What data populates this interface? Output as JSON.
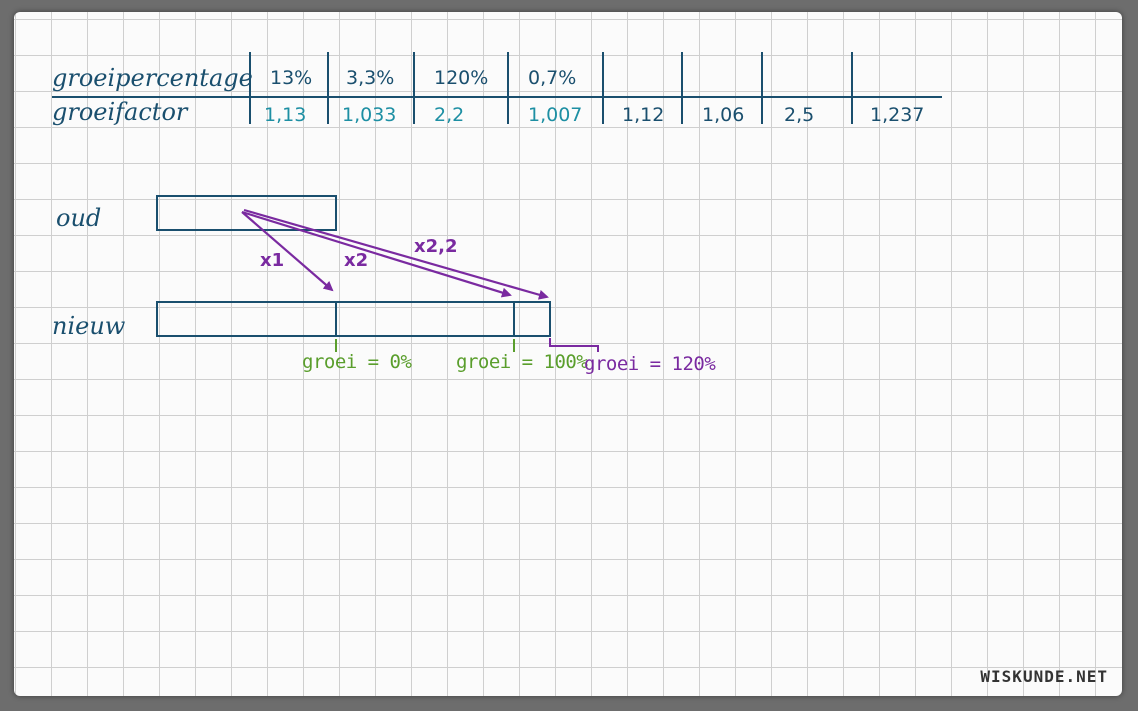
{
  "table": {
    "row1_label": "groeipercentage",
    "row2_label": "groeifactor",
    "percentages": [
      "13%",
      "3,3%",
      "120%",
      "0,7%",
      "",
      "",
      "",
      ""
    ],
    "factors": [
      "1,13",
      "1,033",
      "2,2",
      "1,007",
      "1,12",
      "1,06",
      "2,5",
      "1,237"
    ]
  },
  "diagram": {
    "old_label": "oud",
    "new_label": "nieuw",
    "arrow_labels": [
      "x1",
      "x2",
      "x2,2"
    ],
    "growth_labels": [
      "groei = 0%",
      "groei = 100%",
      "groei = 120%"
    ]
  },
  "colors": {
    "ink": "#1a4f6e",
    "teal": "#1d8fa3",
    "green": "#5a9e2c",
    "purple": "#7a2aa0"
  },
  "watermark": "WISKUNDE.NET"
}
